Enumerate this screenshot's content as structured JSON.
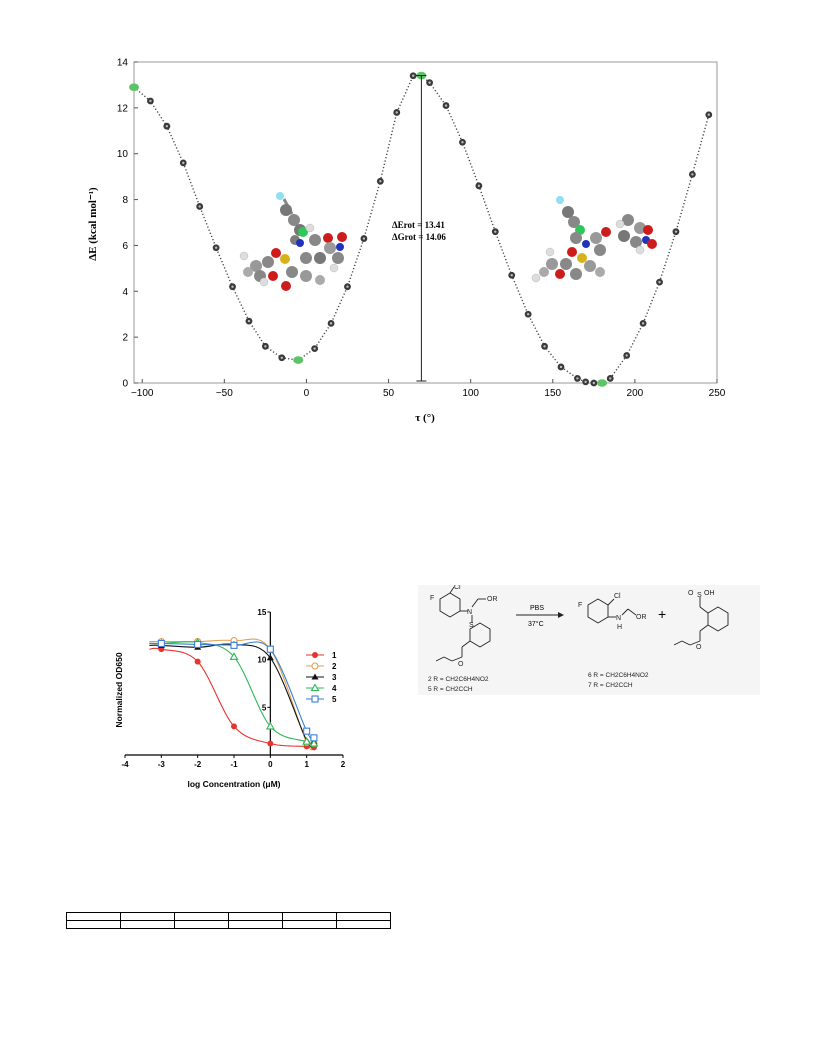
{
  "fig1": {
    "ylabel": "ΔE (kcal mol⁻¹)",
    "xlabel": "τ (°)",
    "x_ticks": [
      "−100",
      "−50",
      "0",
      "50",
      "100",
      "150",
      "200",
      "250"
    ],
    "y_ticks": [
      "0",
      "2",
      "4",
      "6",
      "8",
      "10",
      "12",
      "14"
    ],
    "barrier_E": "ΔErot = 13.41",
    "barrier_G": "ΔGrot = 14.06"
  },
  "fig2": {
    "xlabel": "log Concentration (μM)",
    "ylabel": "Normalized OD650",
    "x_ticks": [
      "-4",
      "-3",
      "-2",
      "-1",
      "0",
      "1",
      "2"
    ],
    "y_ticks": [
      "5",
      "10",
      "15"
    ],
    "legend": [
      "1",
      "2",
      "3",
      "4",
      "5"
    ]
  },
  "scheme": {
    "reagent": "PBS",
    "condition": "37°C",
    "plus": "+",
    "left_labels": [
      "2  R = CH2C6H4NO2",
      "5  R = CH2CCH"
    ],
    "right_labels": [
      "6  R = CH2C6H4NO2",
      "7  R = CH2CCH"
    ],
    "atoms": {
      "F": "F",
      "Cl": "Cl",
      "N": "N",
      "OR": "OR",
      "S": "S",
      "O": "O",
      "OH": "OH",
      "H": "H"
    }
  },
  "chart_data": [
    {
      "type": "line",
      "title": "",
      "xlabel": "τ (°)",
      "ylabel": "ΔE (kcal mol⁻¹)",
      "xlim": [
        -105,
        250
      ],
      "ylim": [
        0,
        14
      ],
      "series": [
        {
          "x": [
            -105,
            -95,
            -85,
            -75,
            -65,
            -55,
            -45,
            -35,
            -25,
            -15,
            -5,
            5,
            15,
            25,
            35,
            45,
            55,
            65,
            70,
            75,
            85,
            95,
            105,
            115,
            125,
            135,
            145,
            155,
            165,
            170,
            175,
            180,
            185,
            195,
            205,
            215,
            225,
            235,
            245
          ],
          "y": [
            12.9,
            12.3,
            11.2,
            9.6,
            7.7,
            5.9,
            4.2,
            2.7,
            1.6,
            1.1,
            1.0,
            1.5,
            2.6,
            4.2,
            6.3,
            8.8,
            11.8,
            13.4,
            13.41,
            13.1,
            12.1,
            10.5,
            8.6,
            6.6,
            4.7,
            3.0,
            1.6,
            0.7,
            0.2,
            0.05,
            0.0,
            0.0,
            0.2,
            1.2,
            2.6,
            4.4,
            6.6,
            9.1,
            11.7
          ]
        }
      ],
      "highlighted_points": [
        [
          -105,
          12.9
        ],
        [
          -5,
          1.0
        ],
        [
          70,
          13.41
        ],
        [
          180,
          0.0
        ]
      ],
      "annotation": {
        "x": 70,
        "E": 13.41,
        "G": 14.06
      }
    },
    {
      "type": "line",
      "title": "",
      "xlabel": "log Concentration (μM)",
      "ylabel": "Normalized OD650",
      "xlim": [
        -4,
        2
      ],
      "ylim": [
        0,
        15
      ],
      "x": [
        -3,
        -2,
        -1,
        0,
        1,
        1.2
      ],
      "series": [
        {
          "name": "1",
          "color": "#e8322f",
          "marker": "circle",
          "values": [
            11.1,
            9.8,
            3.0,
            1.2,
            0.9,
            0.8
          ]
        },
        {
          "name": "2",
          "color": "#e0a050",
          "marker": "open-circle",
          "values": [
            11.9,
            11.9,
            12.0,
            11.1,
            1.3,
            1.2
          ]
        },
        {
          "name": "3",
          "color": "#111111",
          "marker": "triangle",
          "values": [
            11.5,
            11.3,
            11.6,
            10.2,
            1.5,
            1.4
          ]
        },
        {
          "name": "4",
          "color": "#2db85a",
          "marker": "open-triangle",
          "values": [
            11.7,
            11.8,
            10.3,
            3.0,
            1.4,
            1.2
          ]
        },
        {
          "name": "5",
          "color": "#3a7fd5",
          "marker": "open-square",
          "values": [
            11.7,
            11.6,
            11.5,
            11.1,
            2.5,
            1.8
          ]
        }
      ]
    }
  ]
}
